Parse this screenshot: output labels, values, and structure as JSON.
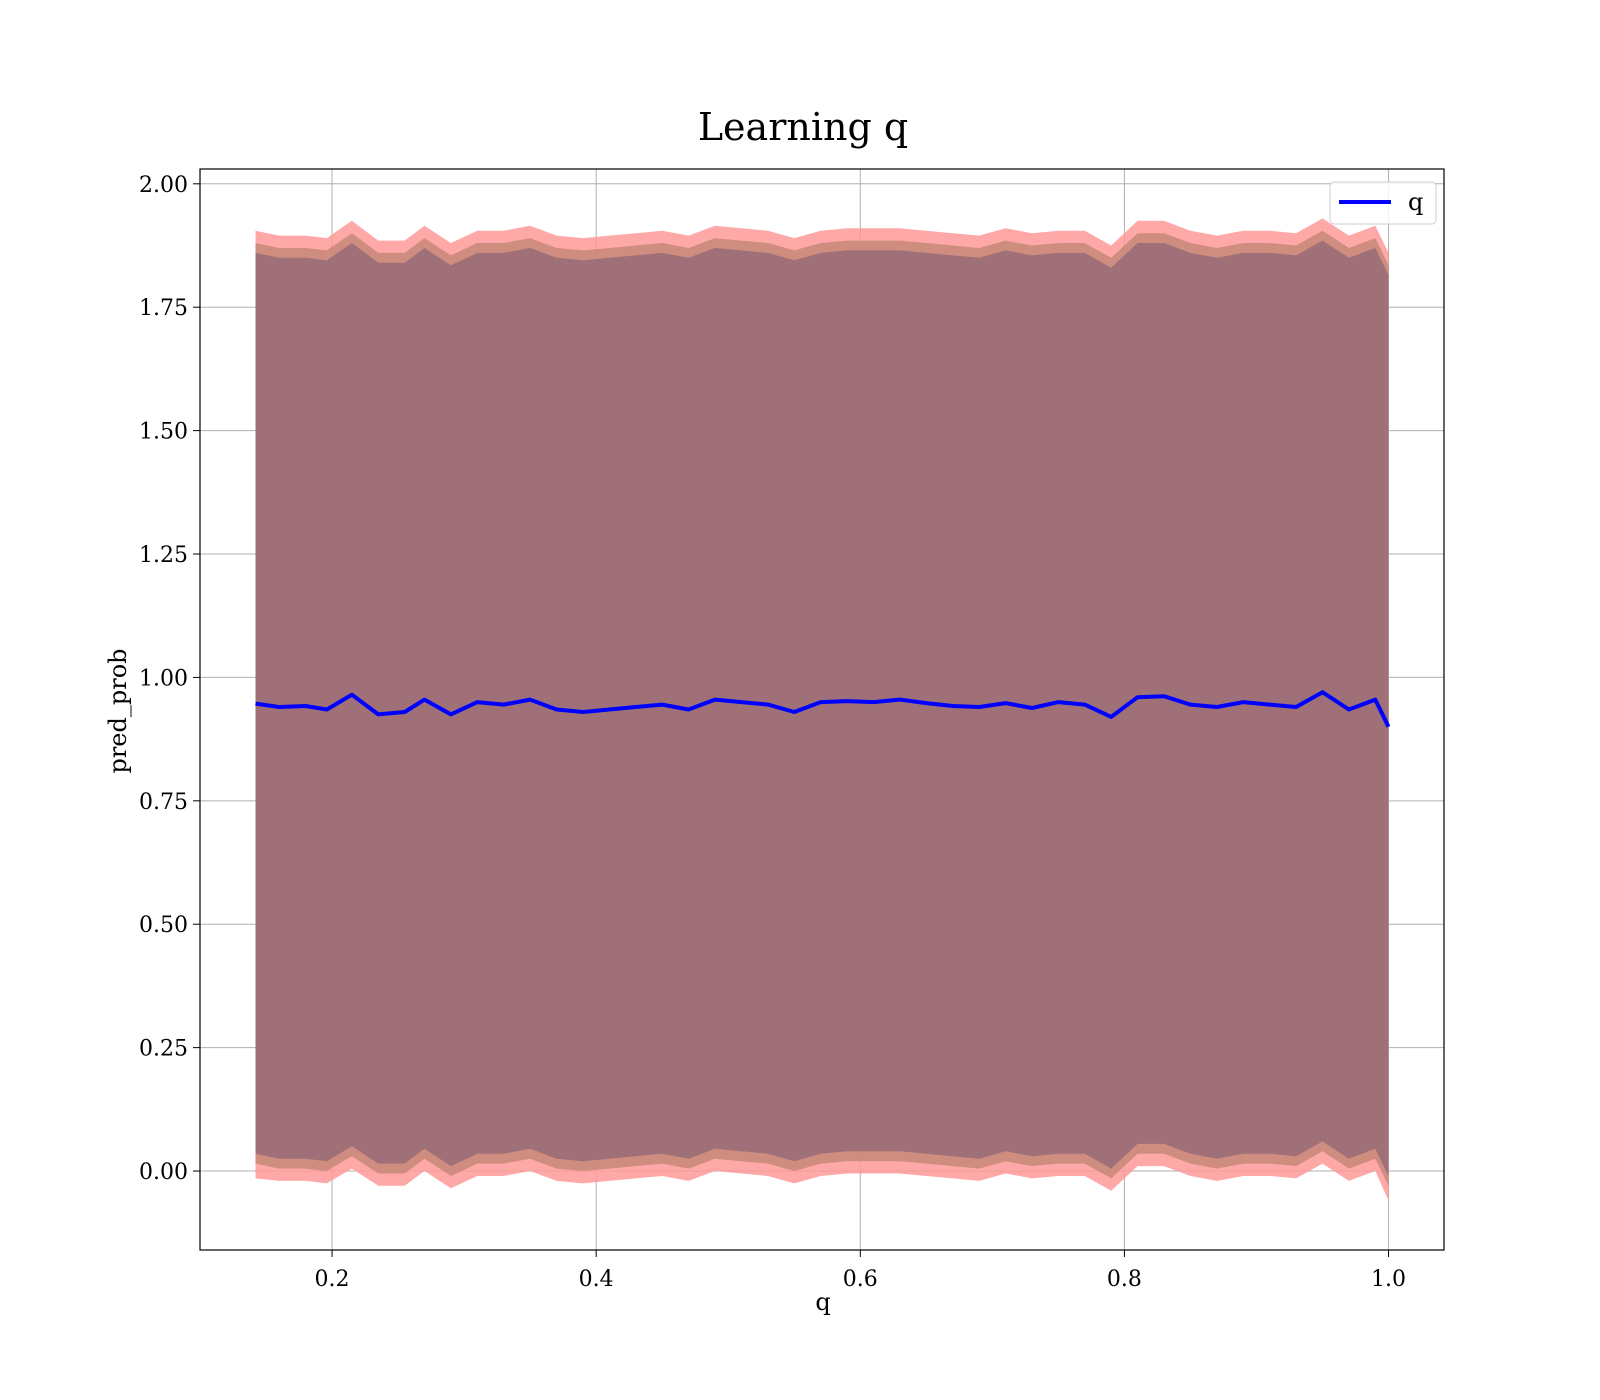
{
  "chart_data": {
    "type": "line",
    "title": "Learning q",
    "xlabel": "q",
    "ylabel": "pred_prob",
    "xlim": [
      0.1,
      1.042
    ],
    "ylim": [
      -0.16,
      2.03
    ],
    "xticks": [
      0.2,
      0.4,
      0.6,
      0.8,
      1.0
    ],
    "xtick_labels": [
      "0.2",
      "0.4",
      "0.6",
      "0.8",
      "1.0"
    ],
    "yticks": [
      0.0,
      0.25,
      0.5,
      0.75,
      1.0,
      1.25,
      1.5,
      1.75,
      2.0
    ],
    "ytick_labels": [
      "0.00",
      "0.25",
      "0.50",
      "0.75",
      "1.00",
      "1.25",
      "1.50",
      "1.75",
      "2.00"
    ],
    "grid": true,
    "legend_position": "top-right",
    "colors": {
      "line": "#0000ff",
      "outer_band": "#ff9999",
      "mid_band": "#c98a7a",
      "inner_band": "#a07078"
    },
    "series": [
      {
        "name": "q",
        "x": [
          0.142,
          0.16,
          0.18,
          0.196,
          0.215,
          0.235,
          0.255,
          0.27,
          0.29,
          0.31,
          0.33,
          0.35,
          0.37,
          0.39,
          0.41,
          0.43,
          0.45,
          0.47,
          0.49,
          0.51,
          0.53,
          0.55,
          0.57,
          0.59,
          0.61,
          0.63,
          0.65,
          0.67,
          0.69,
          0.71,
          0.73,
          0.75,
          0.77,
          0.79,
          0.81,
          0.83,
          0.85,
          0.87,
          0.89,
          0.91,
          0.93,
          0.95,
          0.97,
          0.99,
          1.0
        ],
        "y": [
          0.947,
          0.94,
          0.942,
          0.935,
          0.965,
          0.925,
          0.93,
          0.955,
          0.925,
          0.95,
          0.945,
          0.955,
          0.935,
          0.93,
          0.935,
          0.94,
          0.945,
          0.935,
          0.955,
          0.95,
          0.945,
          0.93,
          0.95,
          0.952,
          0.95,
          0.955,
          0.948,
          0.942,
          0.94,
          0.948,
          0.938,
          0.95,
          0.945,
          0.92,
          0.96,
          0.962,
          0.945,
          0.94,
          0.95,
          0.945,
          0.94,
          0.97,
          0.935,
          0.955,
          0.9
        ]
      }
    ],
    "bands": {
      "x": [
        0.142,
        0.16,
        0.18,
        0.196,
        0.215,
        0.235,
        0.255,
        0.27,
        0.29,
        0.31,
        0.33,
        0.35,
        0.37,
        0.39,
        0.41,
        0.43,
        0.45,
        0.47,
        0.49,
        0.51,
        0.53,
        0.55,
        0.57,
        0.59,
        0.61,
        0.63,
        0.65,
        0.67,
        0.69,
        0.71,
        0.73,
        0.75,
        0.77,
        0.79,
        0.81,
        0.83,
        0.85,
        0.87,
        0.89,
        0.91,
        0.93,
        0.95,
        0.97,
        0.99,
        1.0
      ],
      "upper_outer": [
        1.905,
        1.895,
        1.895,
        1.89,
        1.925,
        1.885,
        1.885,
        1.915,
        1.88,
        1.905,
        1.905,
        1.915,
        1.895,
        1.89,
        1.895,
        1.9,
        1.905,
        1.895,
        1.915,
        1.91,
        1.905,
        1.89,
        1.905,
        1.91,
        1.91,
        1.91,
        1.905,
        1.9,
        1.895,
        1.91,
        1.9,
        1.905,
        1.905,
        1.875,
        1.925,
        1.925,
        1.905,
        1.895,
        1.905,
        1.905,
        1.9,
        1.93,
        1.895,
        1.915,
        1.86
      ],
      "upper_inner": [
        1.88,
        1.87,
        1.87,
        1.865,
        1.9,
        1.86,
        1.86,
        1.89,
        1.855,
        1.88,
        1.88,
        1.89,
        1.87,
        1.865,
        1.87,
        1.875,
        1.88,
        1.87,
        1.89,
        1.885,
        1.88,
        1.865,
        1.88,
        1.885,
        1.885,
        1.885,
        1.88,
        1.875,
        1.87,
        1.885,
        1.875,
        1.88,
        1.88,
        1.85,
        1.9,
        1.9,
        1.88,
        1.87,
        1.88,
        1.88,
        1.875,
        1.905,
        1.87,
        1.89,
        1.835
      ],
      "lower_inner": [
        0.015,
        0.005,
        0.005,
        0.0,
        0.03,
        -0.005,
        -0.005,
        0.025,
        -0.01,
        0.015,
        0.015,
        0.025,
        0.005,
        0.0,
        0.005,
        0.01,
        0.015,
        0.005,
        0.025,
        0.02,
        0.015,
        0.0,
        0.015,
        0.02,
        0.02,
        0.02,
        0.015,
        0.01,
        0.005,
        0.02,
        0.01,
        0.015,
        0.015,
        -0.015,
        0.035,
        0.035,
        0.015,
        0.005,
        0.015,
        0.015,
        0.01,
        0.04,
        0.005,
        0.025,
        -0.03
      ],
      "lower_outer": [
        -0.015,
        -0.02,
        -0.02,
        -0.025,
        0.005,
        -0.03,
        -0.03,
        0.0,
        -0.035,
        -0.01,
        -0.01,
        0.0,
        -0.02,
        -0.025,
        -0.02,
        -0.015,
        -0.01,
        -0.02,
        0.0,
        -0.005,
        -0.01,
        -0.025,
        -0.01,
        -0.005,
        -0.005,
        -0.005,
        -0.01,
        -0.015,
        -0.02,
        -0.005,
        -0.015,
        -0.01,
        -0.01,
        -0.04,
        0.01,
        0.01,
        -0.01,
        -0.02,
        -0.01,
        -0.01,
        -0.015,
        0.015,
        -0.02,
        0.0,
        -0.06
      ]
    }
  }
}
